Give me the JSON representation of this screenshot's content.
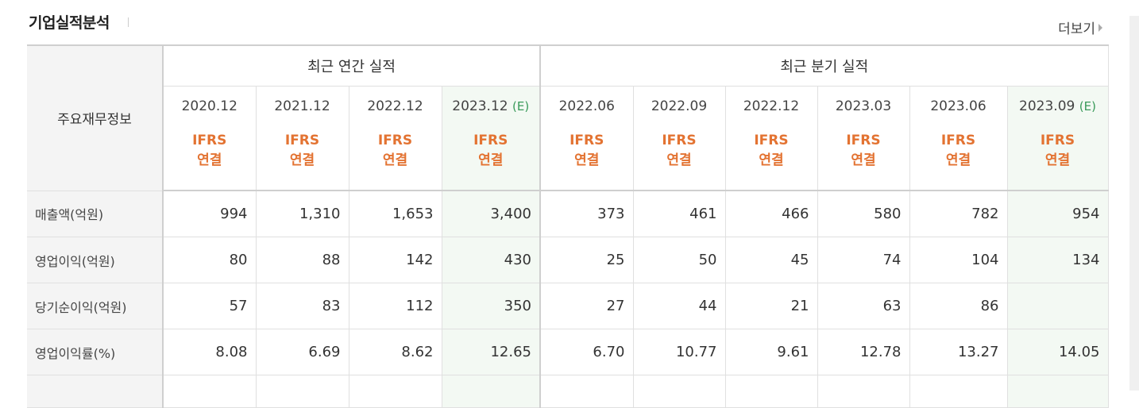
{
  "header": {
    "title": "기업실적분석",
    "more_label": "더보기"
  },
  "table": {
    "corner_label": "주요재무정보",
    "annual_group_label": "최근 연간 실적",
    "quarter_group_label": "최근 분기 실적",
    "periods": [
      {
        "label": "2020.12",
        "est": ""
      },
      {
        "label": "2021.12",
        "est": ""
      },
      {
        "label": "2022.12",
        "est": ""
      },
      {
        "label": "2023.12",
        "est": "(E)"
      },
      {
        "label": "2022.06",
        "est": ""
      },
      {
        "label": "2022.09",
        "est": ""
      },
      {
        "label": "2022.12",
        "est": ""
      },
      {
        "label": "2023.03",
        "est": ""
      },
      {
        "label": "2023.06",
        "est": ""
      },
      {
        "label": "2023.09",
        "est": "(E)"
      }
    ],
    "basis_line1": "IFRS",
    "basis_line2": "연결",
    "rows": [
      {
        "label": "매출액(억원)",
        "values": [
          "994",
          "1,310",
          "1,653",
          "3,400",
          "373",
          "461",
          "466",
          "580",
          "782",
          "954"
        ]
      },
      {
        "label": "영업이익(억원)",
        "values": [
          "80",
          "88",
          "142",
          "430",
          "25",
          "50",
          "45",
          "74",
          "104",
          "134"
        ]
      },
      {
        "label": "당기순이익(억원)",
        "values": [
          "57",
          "83",
          "112",
          "350",
          "27",
          "44",
          "21",
          "63",
          "86",
          ""
        ]
      },
      {
        "label": "영업이익률(%)",
        "values": [
          "8.08",
          "6.69",
          "8.62",
          "12.65",
          "6.70",
          "10.77",
          "9.61",
          "12.78",
          "13.27",
          "14.05"
        ]
      }
    ]
  }
}
